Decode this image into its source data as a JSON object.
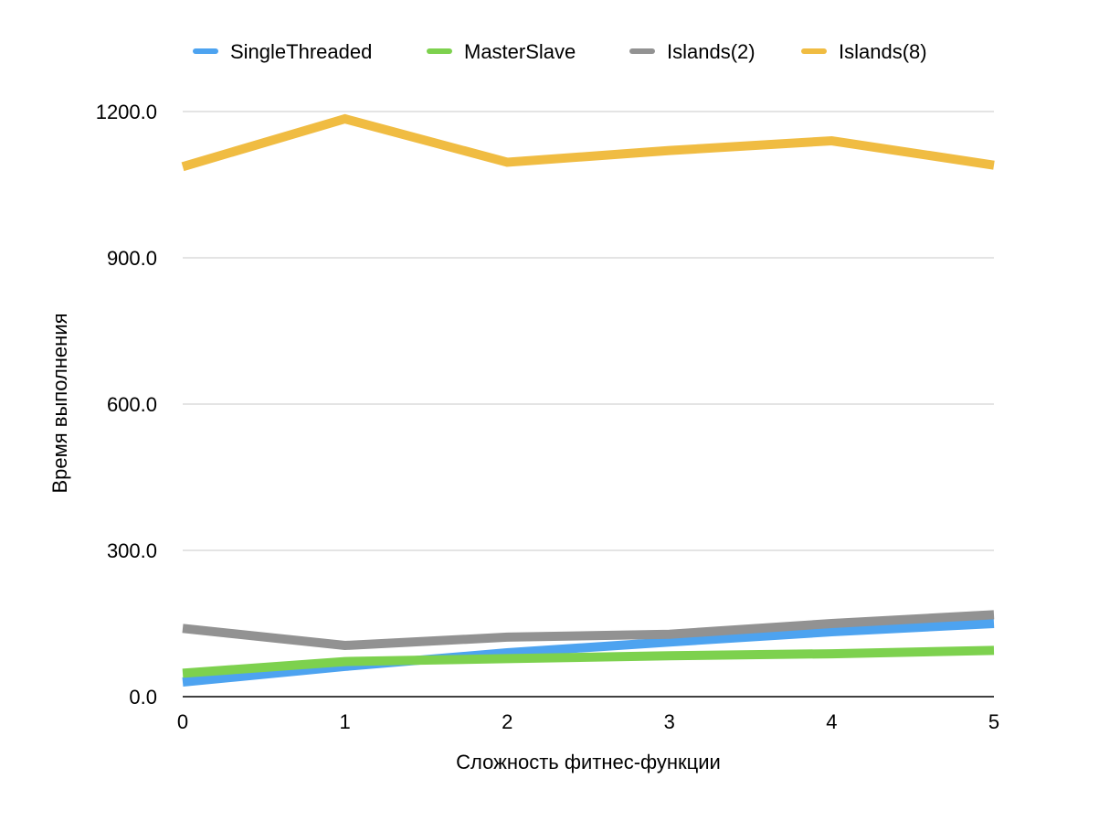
{
  "chart_data": {
    "type": "line",
    "title": "",
    "xlabel": "Сложность фитнес-функции",
    "ylabel": "Время выполнения",
    "x": [
      0,
      1,
      2,
      3,
      4,
      5
    ],
    "x_tick_labels": [
      "0",
      "1",
      "2",
      "3",
      "4",
      "5"
    ],
    "ylim": [
      0,
      1200
    ],
    "y_ticks": [
      0,
      300,
      600,
      900,
      1200
    ],
    "y_tick_labels": [
      "0.0",
      "300.0",
      "600.0",
      "900.0",
      "1200.0"
    ],
    "grid": true,
    "legend_position": "top",
    "series": [
      {
        "name": "SingleThreaded",
        "color": "#4DA3F0",
        "values": [
          30,
          62,
          90,
          112,
          133,
          150
        ]
      },
      {
        "name": "MasterSlave",
        "color": "#7DD14E",
        "values": [
          48,
          72,
          78,
          84,
          88,
          95
        ]
      },
      {
        "name": "Islands(2)",
        "color": "#929292",
        "values": [
          140,
          105,
          122,
          128,
          150,
          168
        ]
      },
      {
        "name": "Islands(8)",
        "color": "#F0BC42",
        "values": [
          1087,
          1185,
          1096,
          1120,
          1140,
          1090
        ]
      }
    ]
  }
}
